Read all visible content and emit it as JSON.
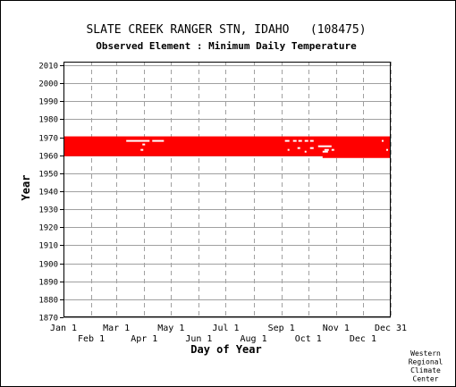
{
  "chart_data": {
    "type": "scatter",
    "title": "SLATE CREEK RANGER STN, IDAHO   (108475)",
    "subtitle": "Observed Element : Minimum Daily Temperature",
    "xlabel": "Day of Year",
    "ylabel": "Year",
    "xlim": [
      1,
      366
    ],
    "ylim": [
      1870,
      2012
    ],
    "x_ticks_top_row": [
      {
        "label": "Jan 1",
        "day": 1
      },
      {
        "label": "Mar 1",
        "day": 60
      },
      {
        "label": "May 1",
        "day": 121
      },
      {
        "label": "Jul 1",
        "day": 182
      },
      {
        "label": "Sep 1",
        "day": 244
      },
      {
        "label": "Nov 1",
        "day": 305
      },
      {
        "label": "Dec 31",
        "day": 366
      }
    ],
    "x_ticks_bottom_row": [
      {
        "label": "Feb 1",
        "day": 32
      },
      {
        "label": "Apr 1",
        "day": 91
      },
      {
        "label": "Jun 1",
        "day": 152
      },
      {
        "label": "Aug 1",
        "day": 213
      },
      {
        "label": "Oct 1",
        "day": 274
      },
      {
        "label": "Dec 1",
        "day": 335
      }
    ],
    "y_ticks": [
      1870,
      1880,
      1890,
      1900,
      1910,
      1920,
      1930,
      1940,
      1950,
      1960,
      1970,
      1980,
      1990,
      2000,
      2010
    ],
    "grid": true,
    "series": [
      {
        "color": "#ff0000",
        "observed_ranges": [
          {
            "start_day": 1,
            "end_day": 366,
            "start_year": 1960,
            "end_year": 1970
          },
          {
            "start_day": 290,
            "end_day": 366,
            "start_year": 1959,
            "end_year": 1960
          }
        ],
        "missing_segments": [
          {
            "start_day": 71,
            "end_day": 97,
            "year": 1968
          },
          {
            "start_day": 100,
            "end_day": 113,
            "year": 1968
          },
          {
            "start_day": 248,
            "end_day": 253,
            "year": 1968
          },
          {
            "start_day": 257,
            "end_day": 261,
            "year": 1968
          },
          {
            "start_day": 263,
            "end_day": 267,
            "year": 1968
          },
          {
            "start_day": 270,
            "end_day": 274,
            "year": 1968
          },
          {
            "start_day": 276,
            "end_day": 280,
            "year": 1968
          },
          {
            "start_day": 356,
            "end_day": 358,
            "year": 1968
          },
          {
            "start_day": 89,
            "end_day": 92,
            "year": 1966
          },
          {
            "start_day": 285,
            "end_day": 300,
            "year": 1965
          },
          {
            "start_day": 262,
            "end_day": 265,
            "year": 1964
          },
          {
            "start_day": 276,
            "end_day": 280,
            "year": 1964
          },
          {
            "start_day": 292,
            "end_day": 297,
            "year": 1963
          },
          {
            "start_day": 300,
            "end_day": 303,
            "year": 1963
          },
          {
            "start_day": 251,
            "end_day": 253,
            "year": 1963
          },
          {
            "start_day": 87,
            "end_day": 90,
            "year": 1963
          },
          {
            "start_day": 361,
            "end_day": 363,
            "year": 1963
          },
          {
            "start_day": 270,
            "end_day": 272,
            "year": 1962
          },
          {
            "start_day": 290,
            "end_day": 296,
            "year": 1962
          }
        ]
      }
    ],
    "credit": [
      "Western",
      "Regional",
      "Climate",
      "Center"
    ]
  }
}
